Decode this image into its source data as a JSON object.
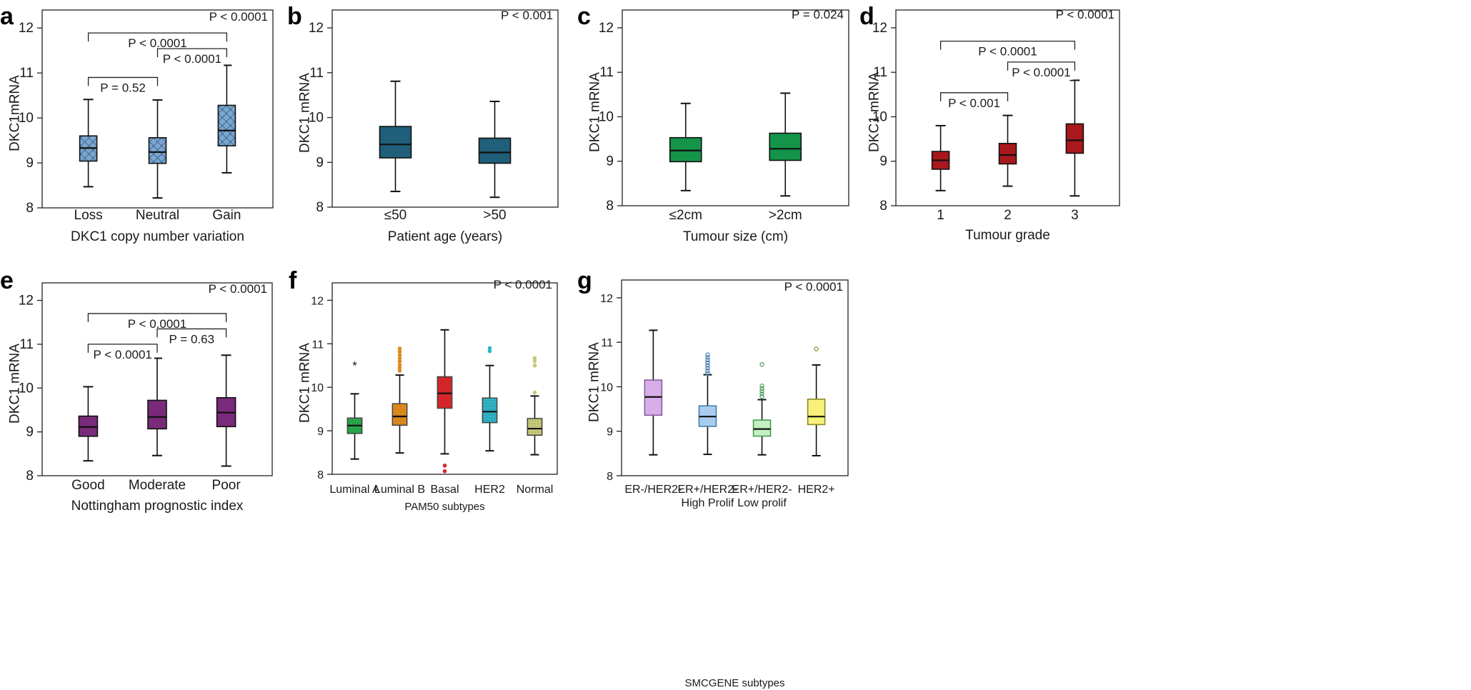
{
  "chart_data": [
    {
      "panel": "a",
      "type": "box",
      "ylabel": "DKC1mRNA",
      "xlabel": "DKC1 copy number variation",
      "ylim": [
        8,
        12.4
      ],
      "yticks": [
        8,
        9,
        10,
        11,
        12
      ],
      "overall_p": "P < 0.0001",
      "color": "#7aa6cf",
      "pattern": "cross",
      "categories": [
        "Loss",
        "Neutral",
        "Gain"
      ],
      "boxes": [
        {
          "min": 8.47,
          "q1": 9.04,
          "median": 9.33,
          "q3": 9.6,
          "max": 10.41
        },
        {
          "min": 8.22,
          "q1": 8.99,
          "median": 9.24,
          "q3": 9.56,
          "max": 10.4
        },
        {
          "min": 8.78,
          "q1": 9.38,
          "median": 9.72,
          "q3": 10.28,
          "max": 11.17
        }
      ],
      "comparisons": [
        {
          "a": 0,
          "b": 2,
          "level": 11.89,
          "label": "P < 0.0001"
        },
        {
          "a": 1,
          "b": 2,
          "level": 11.54,
          "label": "P < 0.0001"
        },
        {
          "a": 0,
          "b": 1,
          "level": 10.9,
          "label": "P = 0.52"
        }
      ],
      "outliers": []
    },
    {
      "panel": "b",
      "type": "box",
      "ylabel": "DKC1 mRNA",
      "xlabel": "Patient age (years)",
      "ylim": [
        8,
        12.4
      ],
      "yticks": [
        8,
        9,
        10,
        11,
        12
      ],
      "overall_p": "P < 0.001",
      "color": "#1f5f7a",
      "pattern": "none",
      "categories": [
        "≤50",
        ">50"
      ],
      "boxes": [
        {
          "min": 8.35,
          "q1": 9.1,
          "median": 9.4,
          "q3": 9.8,
          "max": 10.81
        },
        {
          "min": 8.22,
          "q1": 8.98,
          "median": 9.22,
          "q3": 9.54,
          "max": 10.36
        }
      ],
      "comparisons": [],
      "outliers": []
    },
    {
      "panel": "c",
      "type": "box",
      "ylabel": "DKC1 mRNA",
      "xlabel": "Tumour size (cm)",
      "ylim": [
        8,
        12.4
      ],
      "yticks": [
        8,
        9,
        10,
        11,
        12
      ],
      "overall_p": "P = 0.024",
      "color": "#149448",
      "pattern": "none",
      "categories": [
        "≤2cm",
        ">2cm"
      ],
      "boxes": [
        {
          "min": 8.34,
          "q1": 8.99,
          "median": 9.24,
          "q3": 9.53,
          "max": 10.3
        },
        {
          "min": 8.22,
          "q1": 9.02,
          "median": 9.28,
          "q3": 9.63,
          "max": 10.53
        }
      ],
      "comparisons": [],
      "outliers": []
    },
    {
      "panel": "d",
      "type": "box",
      "ylabel": "DKC1 mRNA",
      "xlabel": "Tumour grade",
      "ylim": [
        8,
        12.4
      ],
      "yticks": [
        8,
        9,
        10,
        11,
        12
      ],
      "overall_p": "P < 0.0001",
      "color": "#a8181c",
      "pattern": "none",
      "categories": [
        "1",
        "2",
        "3"
      ],
      "boxes": [
        {
          "min": 8.34,
          "q1": 8.82,
          "median": 9.02,
          "q3": 9.22,
          "max": 9.8
        },
        {
          "min": 8.44,
          "q1": 8.94,
          "median": 9.14,
          "q3": 9.4,
          "max": 10.03
        },
        {
          "min": 8.22,
          "q1": 9.18,
          "median": 9.47,
          "q3": 9.84,
          "max": 10.82
        }
      ],
      "comparisons": [
        {
          "a": 0,
          "b": 2,
          "level": 11.7,
          "label": "P < 0.0001"
        },
        {
          "a": 1,
          "b": 2,
          "level": 11.23,
          "label": "P < 0.0001"
        },
        {
          "a": 0,
          "b": 1,
          "level": 10.54,
          "label": "P < 0.001"
        }
      ],
      "outliers": []
    },
    {
      "panel": "e",
      "type": "box",
      "ylabel": "DKC1 mRNA",
      "xlabel": "Nottingham prognostic index",
      "ylim": [
        8,
        12.4
      ],
      "yticks": [
        8,
        9,
        10,
        11,
        12
      ],
      "overall_p": "P < 0.0001",
      "color": "#7a2a7a",
      "pattern": "none",
      "categories": [
        "Good",
        "Moderate",
        "Poor"
      ],
      "boxes": [
        {
          "min": 8.34,
          "q1": 8.9,
          "median": 9.11,
          "q3": 9.36,
          "max": 10.03
        },
        {
          "min": 8.46,
          "q1": 9.07,
          "median": 9.34,
          "q3": 9.72,
          "max": 10.68
        },
        {
          "min": 8.22,
          "q1": 9.12,
          "median": 9.44,
          "q3": 9.78,
          "max": 10.75
        }
      ],
      "comparisons": [
        {
          "a": 0,
          "b": 2,
          "level": 11.7,
          "label": "P < 0.0001"
        },
        {
          "a": 1,
          "b": 2,
          "level": 11.35,
          "label": "P = 0.63"
        },
        {
          "a": 0,
          "b": 1,
          "level": 11.0,
          "label": "P < 0.0001"
        }
      ],
      "outliers": []
    },
    {
      "panel": "f",
      "type": "box",
      "ylabel": "DKC1 mRNA",
      "xlabel": "PAM50 subtypes",
      "ylim": [
        8,
        12.4
      ],
      "yticks": [
        8,
        9,
        10,
        11,
        12
      ],
      "overall_p": "P < 0.0001",
      "pattern": "dots",
      "categories": [
        "Luminal A",
        "Luminal B",
        "Basal",
        "HER2",
        "Normal"
      ],
      "colors": [
        "#2aa84a",
        "#e08a1e",
        "#d9262b",
        "#2fb3c4",
        "#c7c97a"
      ],
      "boxes": [
        {
          "min": 8.35,
          "q1": 8.94,
          "median": 9.12,
          "q3": 9.29,
          "max": 9.85
        },
        {
          "min": 8.49,
          "q1": 9.13,
          "median": 9.33,
          "q3": 9.62,
          "max": 10.28
        },
        {
          "min": 8.47,
          "q1": 9.52,
          "median": 9.86,
          "q3": 10.24,
          "max": 11.32
        },
        {
          "min": 8.54,
          "q1": 9.19,
          "median": 9.44,
          "q3": 9.75,
          "max": 10.5
        },
        {
          "min": 8.45,
          "q1": 8.9,
          "median": 9.05,
          "q3": 9.28,
          "max": 9.8
        }
      ],
      "outliers": [
        {
          "box": 0,
          "values": [
            10.5
          ],
          "style": "star"
        },
        {
          "box": 1,
          "values": [
            10.38,
            10.45,
            10.52,
            10.6,
            10.67,
            10.74,
            10.82,
            10.89
          ]
        },
        {
          "box": 2,
          "values": [
            8.2,
            8.07
          ]
        },
        {
          "box": 3,
          "values": [
            10.83,
            10.9
          ]
        },
        {
          "box": 4,
          "values": [
            9.88,
            10.5,
            10.6,
            10.67
          ]
        }
      ],
      "comparisons": []
    },
    {
      "panel": "g",
      "type": "box",
      "ylabel": "DKC1 mRNA",
      "xlabel": "SMCGENE subtypes",
      "ylim": [
        8,
        12.4
      ],
      "yticks": [
        8,
        9,
        10,
        11,
        12
      ],
      "overall_p": "P < 0.0001",
      "pattern": "none",
      "categories": [
        "ER-/HER2-",
        "ER+/HER2-|High Prolif",
        "ER+/HER2-|Low prolif",
        "HER2+"
      ],
      "colors": [
        "#d8aee8",
        "#a9cdf0",
        "#c3f0c0",
        "#f7f07a"
      ],
      "outline_colors": [
        "#8a5ba0",
        "#4a7bb0",
        "#4c9a5a",
        "#8b8a20"
      ],
      "boxes": [
        {
          "min": 8.47,
          "q1": 9.36,
          "median": 9.77,
          "q3": 10.15,
          "max": 11.27
        },
        {
          "min": 8.48,
          "q1": 9.11,
          "median": 9.33,
          "q3": 9.57,
          "max": 10.27
        },
        {
          "min": 8.47,
          "q1": 8.89,
          "median": 9.05,
          "q3": 9.25,
          "max": 9.71
        },
        {
          "min": 8.45,
          "q1": 9.15,
          "median": 9.33,
          "q3": 9.72,
          "max": 10.49
        }
      ],
      "outliers": [
        {
          "box": 1,
          "values": [
            10.3,
            10.36,
            10.42,
            10.48,
            10.54,
            10.6,
            10.66,
            10.72
          ]
        },
        {
          "box": 2,
          "values": [
            9.78,
            9.84,
            9.9,
            9.96,
            10.02,
            10.5
          ]
        },
        {
          "box": 3,
          "values": [
            10.85
          ]
        }
      ],
      "comparisons": []
    }
  ]
}
